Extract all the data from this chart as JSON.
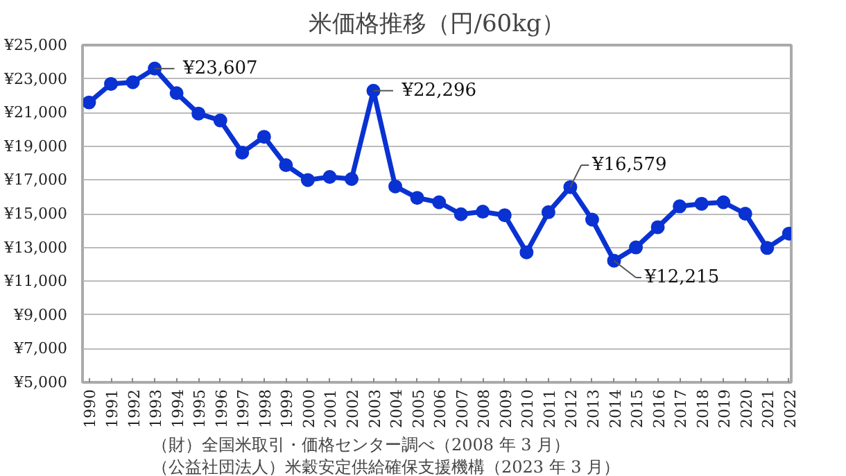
{
  "chart_data": {
    "type": "line",
    "title": "米価格推移（円/60kg）",
    "x": [
      1990,
      1991,
      1992,
      1993,
      1994,
      1995,
      1996,
      1997,
      1998,
      1999,
      2000,
      2001,
      2002,
      2003,
      2004,
      2005,
      2006,
      2007,
      2008,
      2009,
      2010,
      2011,
      2012,
      2013,
      2014,
      2015,
      2016,
      2017,
      2018,
      2019,
      2020,
      2021,
      2022
    ],
    "series": [
      {
        "color": "#0a32d2",
        "values": [
          21600,
          22700,
          22800,
          23607,
          22150,
          20940,
          20530,
          18620,
          19560,
          17880,
          17000,
          17180,
          17060,
          22296,
          16620,
          15940,
          15680,
          14970,
          15120,
          14910,
          12710,
          15090,
          16579,
          14650,
          12215,
          13000,
          14200,
          15440,
          15590,
          15680,
          15000,
          12970,
          13820
        ]
      }
    ],
    "xlim": [
      1989.7,
      2022.1
    ],
    "xticks": [
      1990,
      1991,
      1992,
      1993,
      1994,
      1995,
      1996,
      1997,
      1998,
      1999,
      2000,
      2001,
      2002,
      2003,
      2004,
      2005,
      2006,
      2007,
      2008,
      2009,
      2010,
      2011,
      2012,
      2013,
      2014,
      2015,
      2016,
      2017,
      2018,
      2019,
      2020,
      2021,
      2022
    ],
    "ylim": [
      5000,
      25000
    ],
    "yticks": [
      {
        "value": 5000,
        "label": "¥5,000"
      },
      {
        "value": 7000,
        "label": "¥7,000"
      },
      {
        "value": 9000,
        "label": "¥9,000"
      },
      {
        "value": 11000,
        "label": "¥11,000"
      },
      {
        "value": 13000,
        "label": "¥13,000"
      },
      {
        "value": 15000,
        "label": "¥15,000"
      },
      {
        "value": 17000,
        "label": "¥17,000"
      },
      {
        "value": 19000,
        "label": "¥19,000"
      },
      {
        "value": 21000,
        "label": "¥21,000"
      },
      {
        "value": 23000,
        "label": "¥23,000"
      },
      {
        "value": 25000,
        "label": "¥25,000"
      }
    ],
    "grid": "y",
    "marker": "circle",
    "line_style": "solid",
    "annotations": [
      {
        "text": "¥23,607",
        "x": 1993,
        "y": 23607
      },
      {
        "text": "¥22,296",
        "x": 2003,
        "y": 22296
      },
      {
        "text": "¥16,579",
        "x": 2012,
        "y": 16579
      },
      {
        "text": "¥12,215",
        "x": 2014,
        "y": 12215
      },
      "（財）全国米取引・価格センター調べ（2008 年 3 月）",
      "（公益社団法人）米穀安定供給確保支援機構（2023 年 3 月）"
    ]
  }
}
